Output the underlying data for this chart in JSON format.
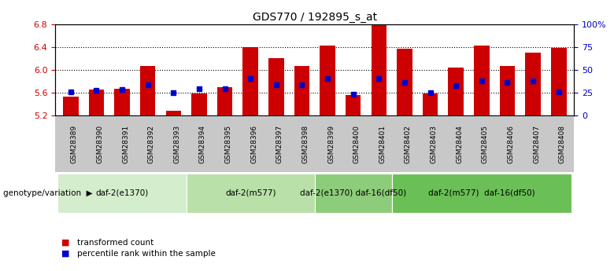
{
  "title": "GDS770 / 192895_s_at",
  "samples": [
    "GSM28389",
    "GSM28390",
    "GSM28391",
    "GSM28392",
    "GSM28393",
    "GSM28394",
    "GSM28395",
    "GSM28396",
    "GSM28397",
    "GSM28398",
    "GSM28399",
    "GSM28400",
    "GSM28401",
    "GSM28402",
    "GSM28403",
    "GSM28404",
    "GSM28405",
    "GSM28406",
    "GSM28407",
    "GSM28408"
  ],
  "red_values": [
    5.53,
    5.65,
    5.66,
    6.07,
    5.28,
    5.58,
    5.7,
    6.4,
    6.2,
    6.07,
    6.42,
    5.56,
    6.8,
    6.37,
    5.58,
    6.04,
    6.43,
    6.07,
    6.3,
    6.38
  ],
  "blue_values": [
    5.61,
    5.64,
    5.65,
    5.73,
    5.6,
    5.66,
    5.67,
    5.84,
    5.73,
    5.73,
    5.84,
    5.57,
    5.85,
    5.78,
    5.6,
    5.72,
    5.8,
    5.77,
    5.8,
    5.61
  ],
  "y_min": 5.2,
  "y_max": 6.8,
  "y_ticks_left": [
    5.2,
    5.6,
    6.0,
    6.4,
    6.8
  ],
  "y_ticks_right": [
    0,
    25,
    50,
    75,
    100
  ],
  "y_ticks_right_labels": [
    "0",
    "25",
    "50",
    "75",
    "100%"
  ],
  "groups": [
    {
      "label": "daf-2(e1370)",
      "start": 0,
      "end": 4,
      "color": "#d4edcc"
    },
    {
      "label": "daf-2(m577)",
      "start": 5,
      "end": 9,
      "color": "#b8e0a8"
    },
    {
      "label": "daf-2(e1370) daf-16(df50)",
      "start": 10,
      "end": 12,
      "color": "#8dcc7a"
    },
    {
      "label": "daf-2(m577)  daf-16(df50)",
      "start": 13,
      "end": 19,
      "color": "#6abf56"
    }
  ],
  "bar_color": "#cc0000",
  "blue_color": "#0000cc",
  "baseline": 5.2,
  "legend_items": [
    {
      "color": "#cc0000",
      "label": "transformed count"
    },
    {
      "color": "#0000cc",
      "label": "percentile rank within the sample"
    }
  ],
  "genotype_label": "genotype/variation",
  "left_axis_color": "#cc0000",
  "right_axis_color": "#0000cc",
  "gray_color": "#c8c8c8"
}
